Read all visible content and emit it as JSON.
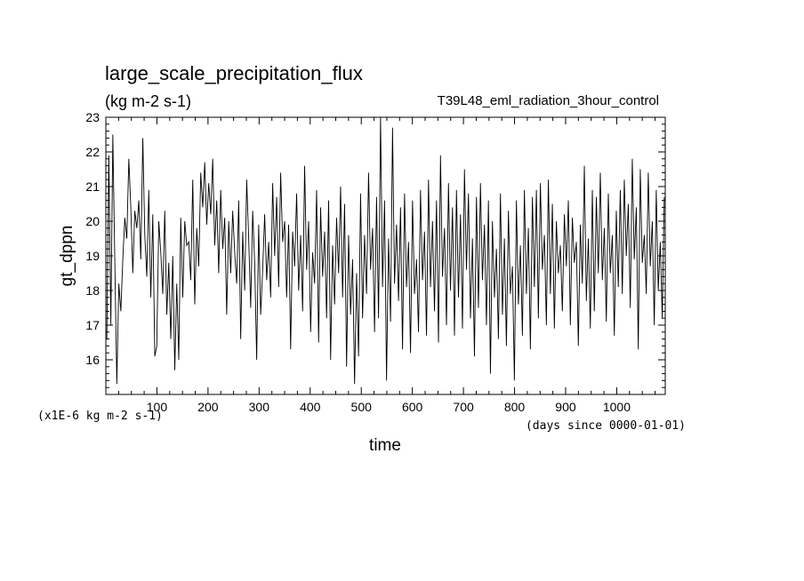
{
  "chart_data": {
    "type": "line",
    "title": "large_scale_precipitation_flux",
    "subtitle": "(kg m-2 s-1)",
    "run_label": "T39L48_eml_radiation_3hour_control",
    "xlabel": "time",
    "x_units": "(days since 0000-01-01)",
    "ylabel": "gt_dppn",
    "y_units": "(x1E-6 kg m-2 s-1)",
    "xlim": [
      0,
      1095
    ],
    "ylim": [
      15,
      23
    ],
    "x_ticks": [
      100,
      200,
      300,
      400,
      500,
      600,
      700,
      800,
      900,
      1000
    ],
    "y_ticks": [
      16,
      17,
      18,
      19,
      20,
      21,
      22,
      23
    ],
    "grid": false,
    "line_color": "#000000",
    "series": [
      {
        "values": [
          16.6,
          21.9,
          17.0,
          22.5,
          18.8,
          15.3,
          18.2,
          17.4,
          18.9,
          20.1,
          19.5,
          21.8,
          20.4,
          18.5,
          20.3,
          19.8,
          20.6,
          18.9,
          22.4,
          19.6,
          18.4,
          20.9,
          17.8,
          20.2,
          16.1,
          16.4,
          20.0,
          19.1,
          17.9,
          20.3,
          17.3,
          18.8,
          16.6,
          19.0,
          15.7,
          18.2,
          16.0,
          20.1,
          17.8,
          20.0,
          19.3,
          19.4,
          18.3,
          21.2,
          17.6,
          19.8,
          18.7,
          21.4,
          20.4,
          21.7,
          19.9,
          21.1,
          20.2,
          21.8,
          19.3,
          20.6,
          18.5,
          20.9,
          19.2,
          20.1,
          17.3,
          20.0,
          18.5,
          20.3,
          19.1,
          18.2,
          20.6,
          16.6,
          19.7,
          18.0,
          21.2,
          19.5,
          17.5,
          20.3,
          18.8,
          16.0,
          19.9,
          17.3,
          18.6,
          20.2,
          18.3,
          19.4,
          17.8,
          21.1,
          19.0,
          20.7,
          18.1,
          21.4,
          19.4,
          20.0,
          17.8,
          19.9,
          16.3,
          19.7,
          18.7,
          20.8,
          18.0,
          19.6,
          17.4,
          21.6,
          18.6,
          20.0,
          16.8,
          19.1,
          18.2,
          20.9,
          16.5,
          20.4,
          18.4,
          19.7,
          17.2,
          20.6,
          16.0,
          19.3,
          17.6,
          20.1,
          18.5,
          21.0,
          17.8,
          20.5,
          15.8,
          19.6,
          17.3,
          18.9,
          15.3,
          18.5,
          16.1,
          20.8,
          17.2,
          19.6,
          17.9,
          21.4,
          18.6,
          19.8,
          16.8,
          20.7,
          17.2,
          23.1,
          18.1,
          20.6,
          15.4,
          19.5,
          17.1,
          22.7,
          18.2,
          19.9,
          17.7,
          20.4,
          16.3,
          20.8,
          18.1,
          19.4,
          16.2,
          20.6,
          17.9,
          18.9,
          16.8,
          20.9,
          18.3,
          19.7,
          16.7,
          21.2,
          18.1,
          20.0,
          17.4,
          20.6,
          16.5,
          21.9,
          18.4,
          19.8,
          17.0,
          21.1,
          18.0,
          20.4,
          16.7,
          20.9,
          17.8,
          20.2,
          16.9,
          21.5,
          18.6,
          20.8,
          17.2,
          19.5,
          16.1,
          20.7,
          17.5,
          21.1,
          18.3,
          19.9,
          17.0,
          20.6,
          15.6,
          20.0,
          17.8,
          19.2,
          16.6,
          20.8,
          17.3,
          19.5,
          16.4,
          20.3,
          17.9,
          18.7,
          15.4,
          20.6,
          17.6,
          19.3,
          16.7,
          20.9,
          17.9,
          19.8,
          16.3,
          20.7,
          18.1,
          20.9,
          17.2,
          21.1,
          18.6,
          19.6,
          17.0,
          21.2,
          17.9,
          20.5,
          16.9,
          20.0,
          18.5,
          19.3,
          17.4,
          20.2,
          18.7,
          20.6,
          17.0,
          20.1,
          18.8,
          19.4,
          16.4,
          19.9,
          18.2,
          21.6,
          17.7,
          19.5,
          16.9,
          20.9,
          17.4,
          20.7,
          18.5,
          21.4,
          18.3,
          19.8,
          17.1,
          20.8,
          18.5,
          19.6,
          16.7,
          20.3,
          18.1,
          20.9,
          17.9,
          21.2,
          19.0,
          20.5,
          17.5,
          21.8,
          18.9,
          20.4,
          16.3,
          21.5,
          18.8,
          19.6,
          17.9,
          21.4,
          18.7,
          20.0,
          17.0,
          20.9,
          18.0,
          19.4,
          17.2,
          20.7
        ]
      }
    ]
  }
}
